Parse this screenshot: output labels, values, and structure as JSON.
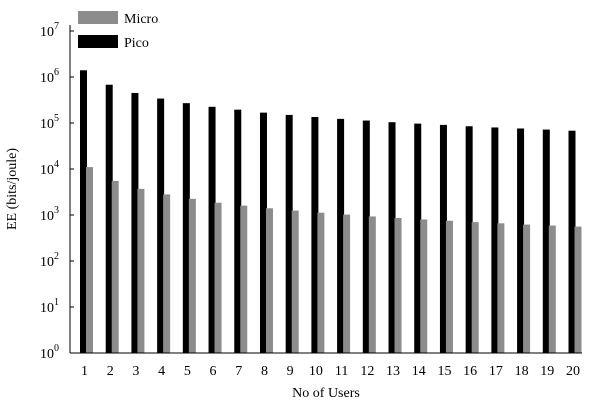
{
  "chart_data": {
    "type": "bar",
    "title": "",
    "xlabel": "No of Users",
    "ylabel": "EE (bits/joule)",
    "y_scale": "log",
    "ylim": [
      1,
      10000000
    ],
    "y_ticks": [
      {
        "base": "10",
        "exp": "0"
      },
      {
        "base": "10",
        "exp": "1"
      },
      {
        "base": "10",
        "exp": "2"
      },
      {
        "base": "10",
        "exp": "3"
      },
      {
        "base": "10",
        "exp": "4"
      },
      {
        "base": "10",
        "exp": "5"
      },
      {
        "base": "10",
        "exp": "6"
      },
      {
        "base": "10",
        "exp": "7"
      }
    ],
    "grid": false,
    "legend_position": "top-left",
    "categories": [
      "1",
      "2",
      "3",
      "4",
      "5",
      "6",
      "7",
      "8",
      "9",
      "10",
      "11",
      "12",
      "13",
      "14",
      "15",
      "16",
      "17",
      "18",
      "19",
      "20"
    ],
    "series": [
      {
        "name": "Micro",
        "color": "#8c8c8c",
        "values": [
          11000,
          5500,
          3700,
          2800,
          2250,
          1850,
          1600,
          1400,
          1250,
          1120,
          1020,
          930,
          860,
          800,
          750,
          700,
          660,
          620,
          590,
          560
        ]
      },
      {
        "name": "Pico",
        "color": "#000000",
        "values": [
          1400000,
          680000,
          450000,
          340000,
          270000,
          225000,
          195000,
          168000,
          150000,
          135000,
          123000,
          113000,
          104000,
          97000,
          91000,
          85000,
          80000,
          76000,
          72000,
          68000
        ]
      }
    ]
  }
}
